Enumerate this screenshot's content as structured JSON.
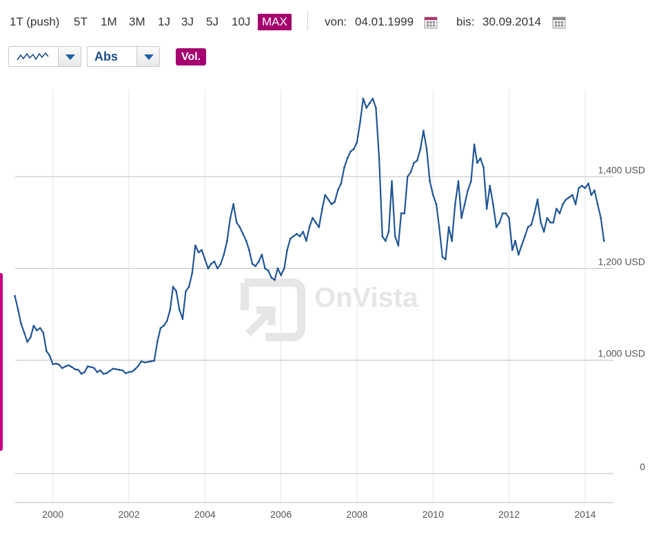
{
  "toolbar": {
    "ranges": [
      "1T (push)",
      "5T",
      "1M",
      "3M",
      "1J",
      "3J",
      "5J",
      "10J",
      "MAX"
    ],
    "active_range": "MAX",
    "from_label": "von:",
    "from_date": "04.01.1999",
    "to_label": "bis:",
    "to_date": "30.09.2014",
    "calendar_icon": "calendar-icon",
    "chart_type_icon": "line-chart-icon",
    "scale_mode": "Abs",
    "volume_label": "Vol."
  },
  "colors": {
    "accent": "#a5006e",
    "line": "#1f5595",
    "grid": "#cccccc",
    "watermark": "#e6e6e6"
  },
  "watermark": "OnVista",
  "chart_data": {
    "type": "line",
    "title": "",
    "xlabel": "",
    "ylabel": "",
    "x_ticks": [
      "2000",
      "2002",
      "2004",
      "2006",
      "2008",
      "2010",
      "2012",
      "2014"
    ],
    "y_ticks": [
      "0",
      "1,000 USD",
      "1,200 USD",
      "1,400 USD"
    ],
    "xlim": [
      "1999-01-04",
      "2014-09-30"
    ],
    "grid": true,
    "series": [
      {
        "values": [
          [
            "1999-01-01",
            1140
          ],
          [
            "1999-02-01",
            1110
          ],
          [
            "1999-03-01",
            1080
          ],
          [
            "1999-04-01",
            1060
          ],
          [
            "1999-05-01",
            1040
          ],
          [
            "1999-06-01",
            1050
          ],
          [
            "1999-07-01",
            1075
          ],
          [
            "1999-08-01",
            1065
          ],
          [
            "1999-09-01",
            1070
          ],
          [
            "1999-10-01",
            1060
          ],
          [
            "1999-11-01",
            1020
          ],
          [
            "1999-12-01",
            1010
          ],
          [
            "2000-01-01",
            965
          ],
          [
            "2000-02-01",
            970
          ],
          [
            "2000-03-01",
            960
          ],
          [
            "2000-04-01",
            930
          ],
          [
            "2000-05-01",
            945
          ],
          [
            "2000-06-01",
            955
          ],
          [
            "2000-07-01",
            940
          ],
          [
            "2000-08-01",
            920
          ],
          [
            "2000-09-01",
            915
          ],
          [
            "2000-10-01",
            880
          ],
          [
            "2000-11-01",
            895
          ],
          [
            "2000-12-01",
            945
          ],
          [
            "2001-01-01",
            940
          ],
          [
            "2001-02-01",
            930
          ],
          [
            "2001-03-01",
            895
          ],
          [
            "2001-04-01",
            910
          ],
          [
            "2001-05-01",
            880
          ],
          [
            "2001-06-01",
            885
          ],
          [
            "2001-07-01",
            905
          ],
          [
            "2001-08-01",
            925
          ],
          [
            "2001-09-01",
            920
          ],
          [
            "2001-10-01",
            915
          ],
          [
            "2001-11-01",
            910
          ],
          [
            "2001-12-01",
            885
          ],
          [
            "2002-01-01",
            895
          ],
          [
            "2002-02-01",
            900
          ],
          [
            "2002-03-01",
            920
          ],
          [
            "2002-04-01",
            950
          ],
          [
            "2002-05-01",
            990
          ],
          [
            "2002-06-01",
            980
          ],
          [
            "2002-07-01",
            985
          ],
          [
            "2002-08-01",
            990
          ],
          [
            "2002-09-01",
            995
          ],
          [
            "2002-10-01",
            1040
          ],
          [
            "2002-11-01",
            1070
          ],
          [
            "2002-12-01",
            1075
          ],
          [
            "2003-01-01",
            1085
          ],
          [
            "2003-02-01",
            1110
          ],
          [
            "2003-03-01",
            1160
          ],
          [
            "2003-04-01",
            1150
          ],
          [
            "2003-05-01",
            1110
          ],
          [
            "2003-06-01",
            1090
          ],
          [
            "2003-07-01",
            1150
          ],
          [
            "2003-08-01",
            1160
          ],
          [
            "2003-09-01",
            1190
          ],
          [
            "2003-10-01",
            1250
          ],
          [
            "2003-11-01",
            1235
          ],
          [
            "2003-12-01",
            1240
          ],
          [
            "2004-01-01",
            1220
          ],
          [
            "2004-02-01",
            1200
          ],
          [
            "2004-03-01",
            1210
          ],
          [
            "2004-04-01",
            1215
          ],
          [
            "2004-05-01",
            1200
          ],
          [
            "2004-06-01",
            1210
          ],
          [
            "2004-07-01",
            1230
          ],
          [
            "2004-08-01",
            1260
          ],
          [
            "2004-09-01",
            1310
          ],
          [
            "2004-10-01",
            1340
          ],
          [
            "2004-11-01",
            1300
          ],
          [
            "2004-12-01",
            1290
          ],
          [
            "2005-01-01",
            1275
          ],
          [
            "2005-02-01",
            1260
          ],
          [
            "2005-03-01",
            1240
          ],
          [
            "2005-04-01",
            1210
          ],
          [
            "2005-05-01",
            1205
          ],
          [
            "2005-06-01",
            1215
          ],
          [
            "2005-07-01",
            1230
          ],
          [
            "2005-08-01",
            1200
          ],
          [
            "2005-09-01",
            1195
          ],
          [
            "2005-10-01",
            1180
          ],
          [
            "2005-11-01",
            1175
          ],
          [
            "2005-12-01",
            1200
          ],
          [
            "2006-01-01",
            1185
          ],
          [
            "2006-02-01",
            1200
          ],
          [
            "2006-03-01",
            1240
          ],
          [
            "2006-04-01",
            1265
          ],
          [
            "2006-05-01",
            1270
          ],
          [
            "2006-06-01",
            1275
          ],
          [
            "2006-07-01",
            1270
          ],
          [
            "2006-08-01",
            1280
          ],
          [
            "2006-09-01",
            1260
          ],
          [
            "2006-10-01",
            1290
          ],
          [
            "2006-11-01",
            1310
          ],
          [
            "2006-12-01",
            1300
          ],
          [
            "2007-01-01",
            1290
          ],
          [
            "2007-02-01",
            1330
          ],
          [
            "2007-03-01",
            1360
          ],
          [
            "2007-04-01",
            1350
          ],
          [
            "2007-05-01",
            1340
          ],
          [
            "2007-06-01",
            1345
          ],
          [
            "2007-07-01",
            1370
          ],
          [
            "2007-08-01",
            1385
          ],
          [
            "2007-09-01",
            1420
          ],
          [
            "2007-10-01",
            1440
          ],
          [
            "2007-11-01",
            1455
          ],
          [
            "2007-12-01",
            1460
          ],
          [
            "2008-01-01",
            1475
          ],
          [
            "2008-02-01",
            1520
          ],
          [
            "2008-03-01",
            1570
          ],
          [
            "2008-04-01",
            1550
          ],
          [
            "2008-05-01",
            1560
          ],
          [
            "2008-06-01",
            1570
          ],
          [
            "2008-07-01",
            1550
          ],
          [
            "2008-08-01",
            1440
          ],
          [
            "2008-09-01",
            1270
          ],
          [
            "2008-10-01",
            1260
          ],
          [
            "2008-11-01",
            1280
          ],
          [
            "2008-12-01",
            1390
          ],
          [
            "2009-01-01",
            1270
          ],
          [
            "2009-02-01",
            1250
          ],
          [
            "2009-03-01",
            1320
          ],
          [
            "2009-04-01",
            1320
          ],
          [
            "2009-05-01",
            1400
          ],
          [
            "2009-06-01",
            1410
          ],
          [
            "2009-07-01",
            1430
          ],
          [
            "2009-08-01",
            1435
          ],
          [
            "2009-09-01",
            1460
          ],
          [
            "2009-10-01",
            1500
          ],
          [
            "2009-11-01",
            1460
          ],
          [
            "2009-12-01",
            1390
          ],
          [
            "2010-01-01",
            1360
          ],
          [
            "2010-02-01",
            1340
          ],
          [
            "2010-03-01",
            1290
          ],
          [
            "2010-04-01",
            1225
          ],
          [
            "2010-05-01",
            1220
          ],
          [
            "2010-06-01",
            1290
          ],
          [
            "2010-07-01",
            1260
          ],
          [
            "2010-08-01",
            1340
          ],
          [
            "2010-09-01",
            1390
          ],
          [
            "2010-10-01",
            1310
          ],
          [
            "2010-11-01",
            1340
          ],
          [
            "2010-12-01",
            1370
          ],
          [
            "2011-01-01",
            1390
          ],
          [
            "2011-02-01",
            1470
          ],
          [
            "2011-03-01",
            1430
          ],
          [
            "2011-04-01",
            1440
          ],
          [
            "2011-05-01",
            1420
          ],
          [
            "2011-06-01",
            1330
          ],
          [
            "2011-07-01",
            1380
          ],
          [
            "2011-08-01",
            1340
          ],
          [
            "2011-09-01",
            1290
          ],
          [
            "2011-10-01",
            1300
          ],
          [
            "2011-11-01",
            1320
          ],
          [
            "2011-12-01",
            1320
          ],
          [
            "2012-01-01",
            1310
          ],
          [
            "2012-02-01",
            1240
          ],
          [
            "2012-03-01",
            1260
          ],
          [
            "2012-04-01",
            1230
          ],
          [
            "2012-05-01",
            1250
          ],
          [
            "2012-06-01",
            1270
          ],
          [
            "2012-07-01",
            1290
          ],
          [
            "2012-08-01",
            1295
          ],
          [
            "2012-09-01",
            1320
          ],
          [
            "2012-10-01",
            1350
          ],
          [
            "2012-11-01",
            1300
          ],
          [
            "2012-12-01",
            1280
          ],
          [
            "2013-01-01",
            1310
          ],
          [
            "2013-02-01",
            1300
          ],
          [
            "2013-03-01",
            1300
          ],
          [
            "2013-04-01",
            1330
          ],
          [
            "2013-05-01",
            1320
          ],
          [
            "2013-06-01",
            1340
          ],
          [
            "2013-07-01",
            1350
          ],
          [
            "2013-08-01",
            1355
          ],
          [
            "2013-09-01",
            1360
          ],
          [
            "2013-10-01",
            1340
          ],
          [
            "2013-11-01",
            1375
          ],
          [
            "2013-12-01",
            1380
          ],
          [
            "2014-01-01",
            1375
          ],
          [
            "2014-02-01",
            1385
          ],
          [
            "2014-03-01",
            1360
          ],
          [
            "2014-04-01",
            1370
          ],
          [
            "2014-05-01",
            1340
          ],
          [
            "2014-06-01",
            1310
          ],
          [
            "2014-07-01",
            1260
          ]
        ]
      }
    ]
  }
}
